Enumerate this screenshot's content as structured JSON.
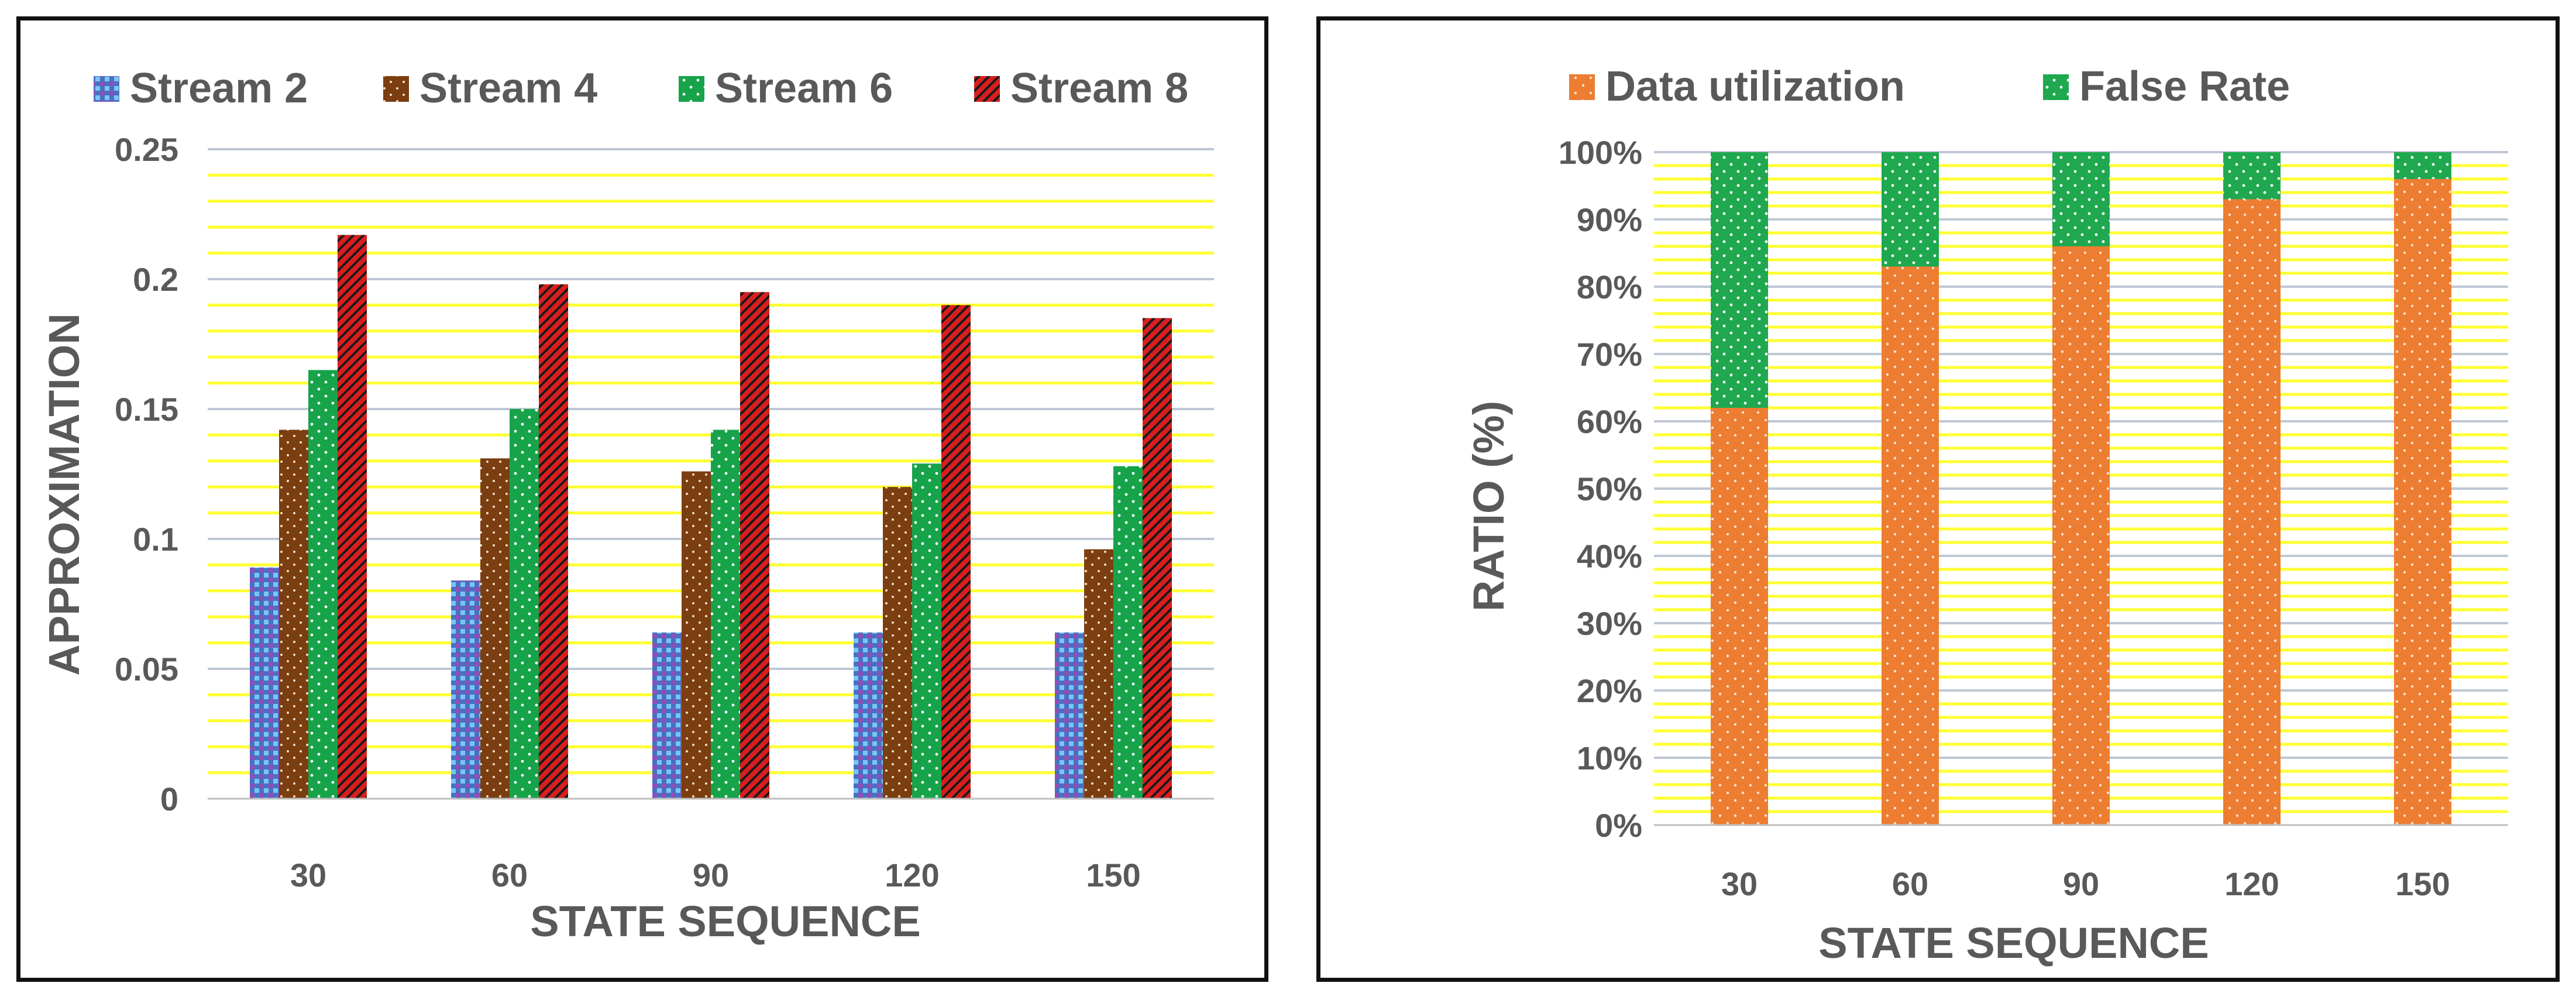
{
  "chart_data": [
    {
      "type": "bar",
      "categories": [
        "30",
        "60",
        "90",
        "120",
        "150"
      ],
      "series": [
        {
          "name": "Stream 2",
          "values": [
            0.089,
            0.084,
            0.064,
            0.064,
            0.064
          ]
        },
        {
          "name": "Stream 4",
          "values": [
            0.142,
            0.131,
            0.126,
            0.12,
            0.096
          ]
        },
        {
          "name": "Stream 6",
          "values": [
            0.165,
            0.15,
            0.142,
            0.129,
            0.128
          ]
        },
        {
          "name": "Stream 8",
          "values": [
            0.217,
            0.198,
            0.195,
            0.19,
            0.185
          ]
        }
      ],
      "xlabel": "STATE SEQUENCE",
      "ylabel": "APPROXIMATION",
      "ylim": [
        0,
        0.25
      ],
      "yticks": [
        "0",
        "0.05",
        "0.1",
        "0.15",
        "0.2",
        "0.25"
      ],
      "legend": "top",
      "grid": true
    },
    {
      "type": "bar",
      "stacked": true,
      "categories": [
        "30",
        "60",
        "90",
        "120",
        "150"
      ],
      "series": [
        {
          "name": "Data utilization",
          "values": [
            62,
            83,
            86,
            93,
            96
          ]
        },
        {
          "name": "False Rate",
          "values": [
            38,
            17,
            14,
            7,
            4
          ]
        }
      ],
      "xlabel": "STATE SEQUENCE",
      "ylabel": "RATIO (%)",
      "ylim": [
        0,
        100
      ],
      "yticks": [
        "0%",
        "10%",
        "20%",
        "30%",
        "40%",
        "50%",
        "60%",
        "70%",
        "80%",
        "90%",
        "100%"
      ],
      "legend": "top",
      "grid": true
    }
  ],
  "colors": {
    "stream2": "#4472C4",
    "stream2_alt": "#7CC4F2",
    "stream2_check": "#8E4FB8",
    "stream4": "#7B3E10",
    "stream6": "#16A34A",
    "stream8": "#D81E1E",
    "stream8_stripe": "#1A1A1A",
    "utilization": "#ED7D31",
    "false_rate": "#1FA84F",
    "gridline_yellow": "#FFFF33",
    "gridline_major": "#BFC7D5",
    "text": "#595959"
  }
}
